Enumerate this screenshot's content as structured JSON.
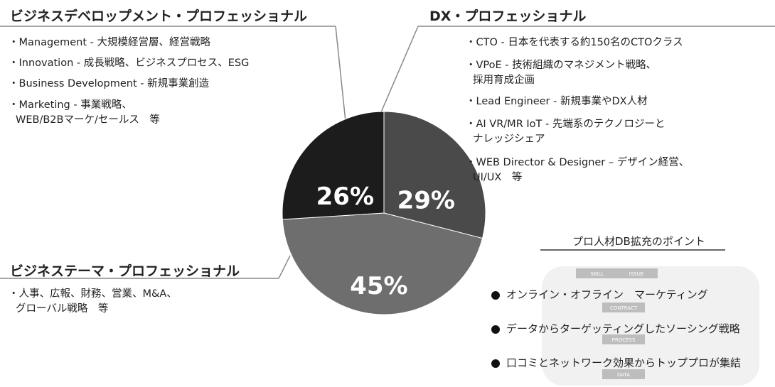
{
  "chart_data": {
    "type": "pie",
    "categories": [
      "DX・プロフェッショナル",
      "ビジネステーマ・プロフェッショナル",
      "ビジネスデベロップメント・プロフェッショナル"
    ],
    "values": [
      29,
      45,
      26
    ],
    "value_labels": [
      "29%",
      "45%",
      "26%"
    ],
    "colors": [
      "#4a4a4a",
      "#6e6e6e",
      "#1c1c1c"
    ],
    "details": [
      [
        [
          "・CTO - 日本を代表する約150名のCTOクラス"
        ],
        [
          "・VPoE - 技術組織のマネジメント戦略、",
          "採用育成企画"
        ],
        [
          "・Lead Engineer - 新規事業やDX人材"
        ],
        [
          "・AI VR/MR IoT - 先端系のテクノロジーと",
          "ナレッジシェア"
        ],
        [
          "・WEB Director & Designer – デザイン経営、",
          "UI/UX　等"
        ]
      ],
      [
        [
          "・人事、広報、財務、営業、M&A、",
          "グローバル戦略　等"
        ]
      ],
      [
        [
          "・Management - 大規模経営層、経営戦略"
        ],
        [
          "・Innovation - 成長戦略、ビジネスプロセス、ESG"
        ],
        [
          "・Business Development - 新規事業創造"
        ],
        [
          "・Marketing - 事業戦略、",
          "WEB/B2Bマーケ/セールス　等"
        ]
      ]
    ]
  },
  "points": {
    "title": "プロ人材DB拡充のポイント",
    "diagram_labels": [
      "SKILL",
      "ISSUE",
      "CONTRACT",
      "PROCESS",
      "DATA"
    ],
    "items": [
      "オンライン・オフライン　マーケティング",
      "データからターゲッティングしたソーシング戦略",
      "口コミとネットワーク効果からトッププロが集結"
    ]
  }
}
